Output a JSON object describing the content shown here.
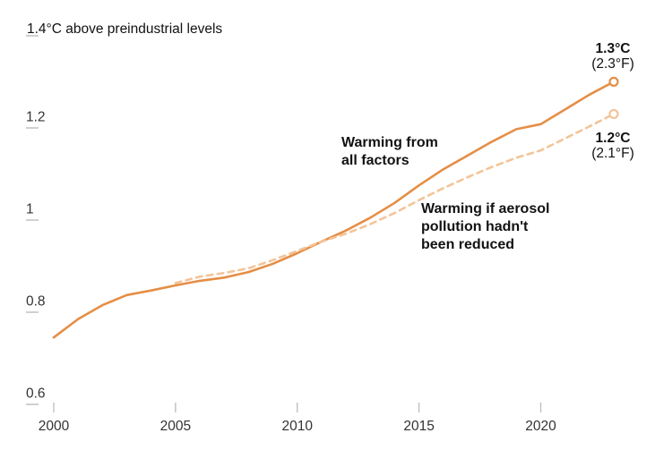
{
  "chart_data": {
    "type": "line",
    "title": "1.4°C above preindustrial levels",
    "xlabel": "",
    "ylabel": "°C above preindustrial levels",
    "xlim": [
      2000,
      2023
    ],
    "ylim": [
      0.6,
      1.4
    ],
    "xticks": [
      2000,
      2005,
      2010,
      2015,
      2020
    ],
    "yticks": [
      0.6,
      0.8,
      1,
      1.2,
      1.4
    ],
    "grid": false,
    "legend_position": "inline-annotations",
    "series": [
      {
        "name": "Warming from all factors",
        "style": "solid",
        "color": "#e58e46",
        "x": [
          2000,
          2001,
          2002,
          2003,
          2004,
          2005,
          2006,
          2007,
          2008,
          2009,
          2010,
          2011,
          2012,
          2013,
          2014,
          2015,
          2016,
          2017,
          2018,
          2019,
          2020,
          2021,
          2022,
          2023
        ],
        "values": [
          0.72,
          0.76,
          0.79,
          0.812,
          0.822,
          0.833,
          0.843,
          0.85,
          0.862,
          0.88,
          0.903,
          0.928,
          0.952,
          0.98,
          1.012,
          1.05,
          1.085,
          1.115,
          1.145,
          1.172,
          1.183,
          1.215,
          1.247,
          1.275
        ],
        "end_label": {
          "temp_c": "1.3°C",
          "temp_f": "(2.3°F)"
        }
      },
      {
        "name": "Warming if aerosol pollution hadn't been reduced",
        "style": "dashed",
        "color": "#f3c498",
        "x": [
          2005,
          2006,
          2007,
          2008,
          2009,
          2010,
          2011,
          2012,
          2013,
          2014,
          2015,
          2016,
          2017,
          2018,
          2019,
          2020,
          2021,
          2022,
          2023
        ],
        "values": [
          0.838,
          0.852,
          0.86,
          0.87,
          0.888,
          0.908,
          0.928,
          0.945,
          0.966,
          0.99,
          1.018,
          1.044,
          1.068,
          1.09,
          1.11,
          1.126,
          1.152,
          1.178,
          1.205
        ],
        "end_label": {
          "temp_c": "1.2°C",
          "temp_f": "(2.1°F)"
        }
      }
    ],
    "colors": {
      "factual_line": "#e58e46",
      "counterfactual_line": "#f3c498",
      "tick_line": "#bcbcbc",
      "tick_text": "#333333",
      "annotation_text": "#121212",
      "background": "#ffffff"
    }
  },
  "annotations": {
    "y_axis_title": "1.4°C above preindustrial levels",
    "series_all_factors": "Warming from\nall factors",
    "series_counterfactual": "Warming if aerosol\npollution hadn't\nbeen reduced"
  }
}
